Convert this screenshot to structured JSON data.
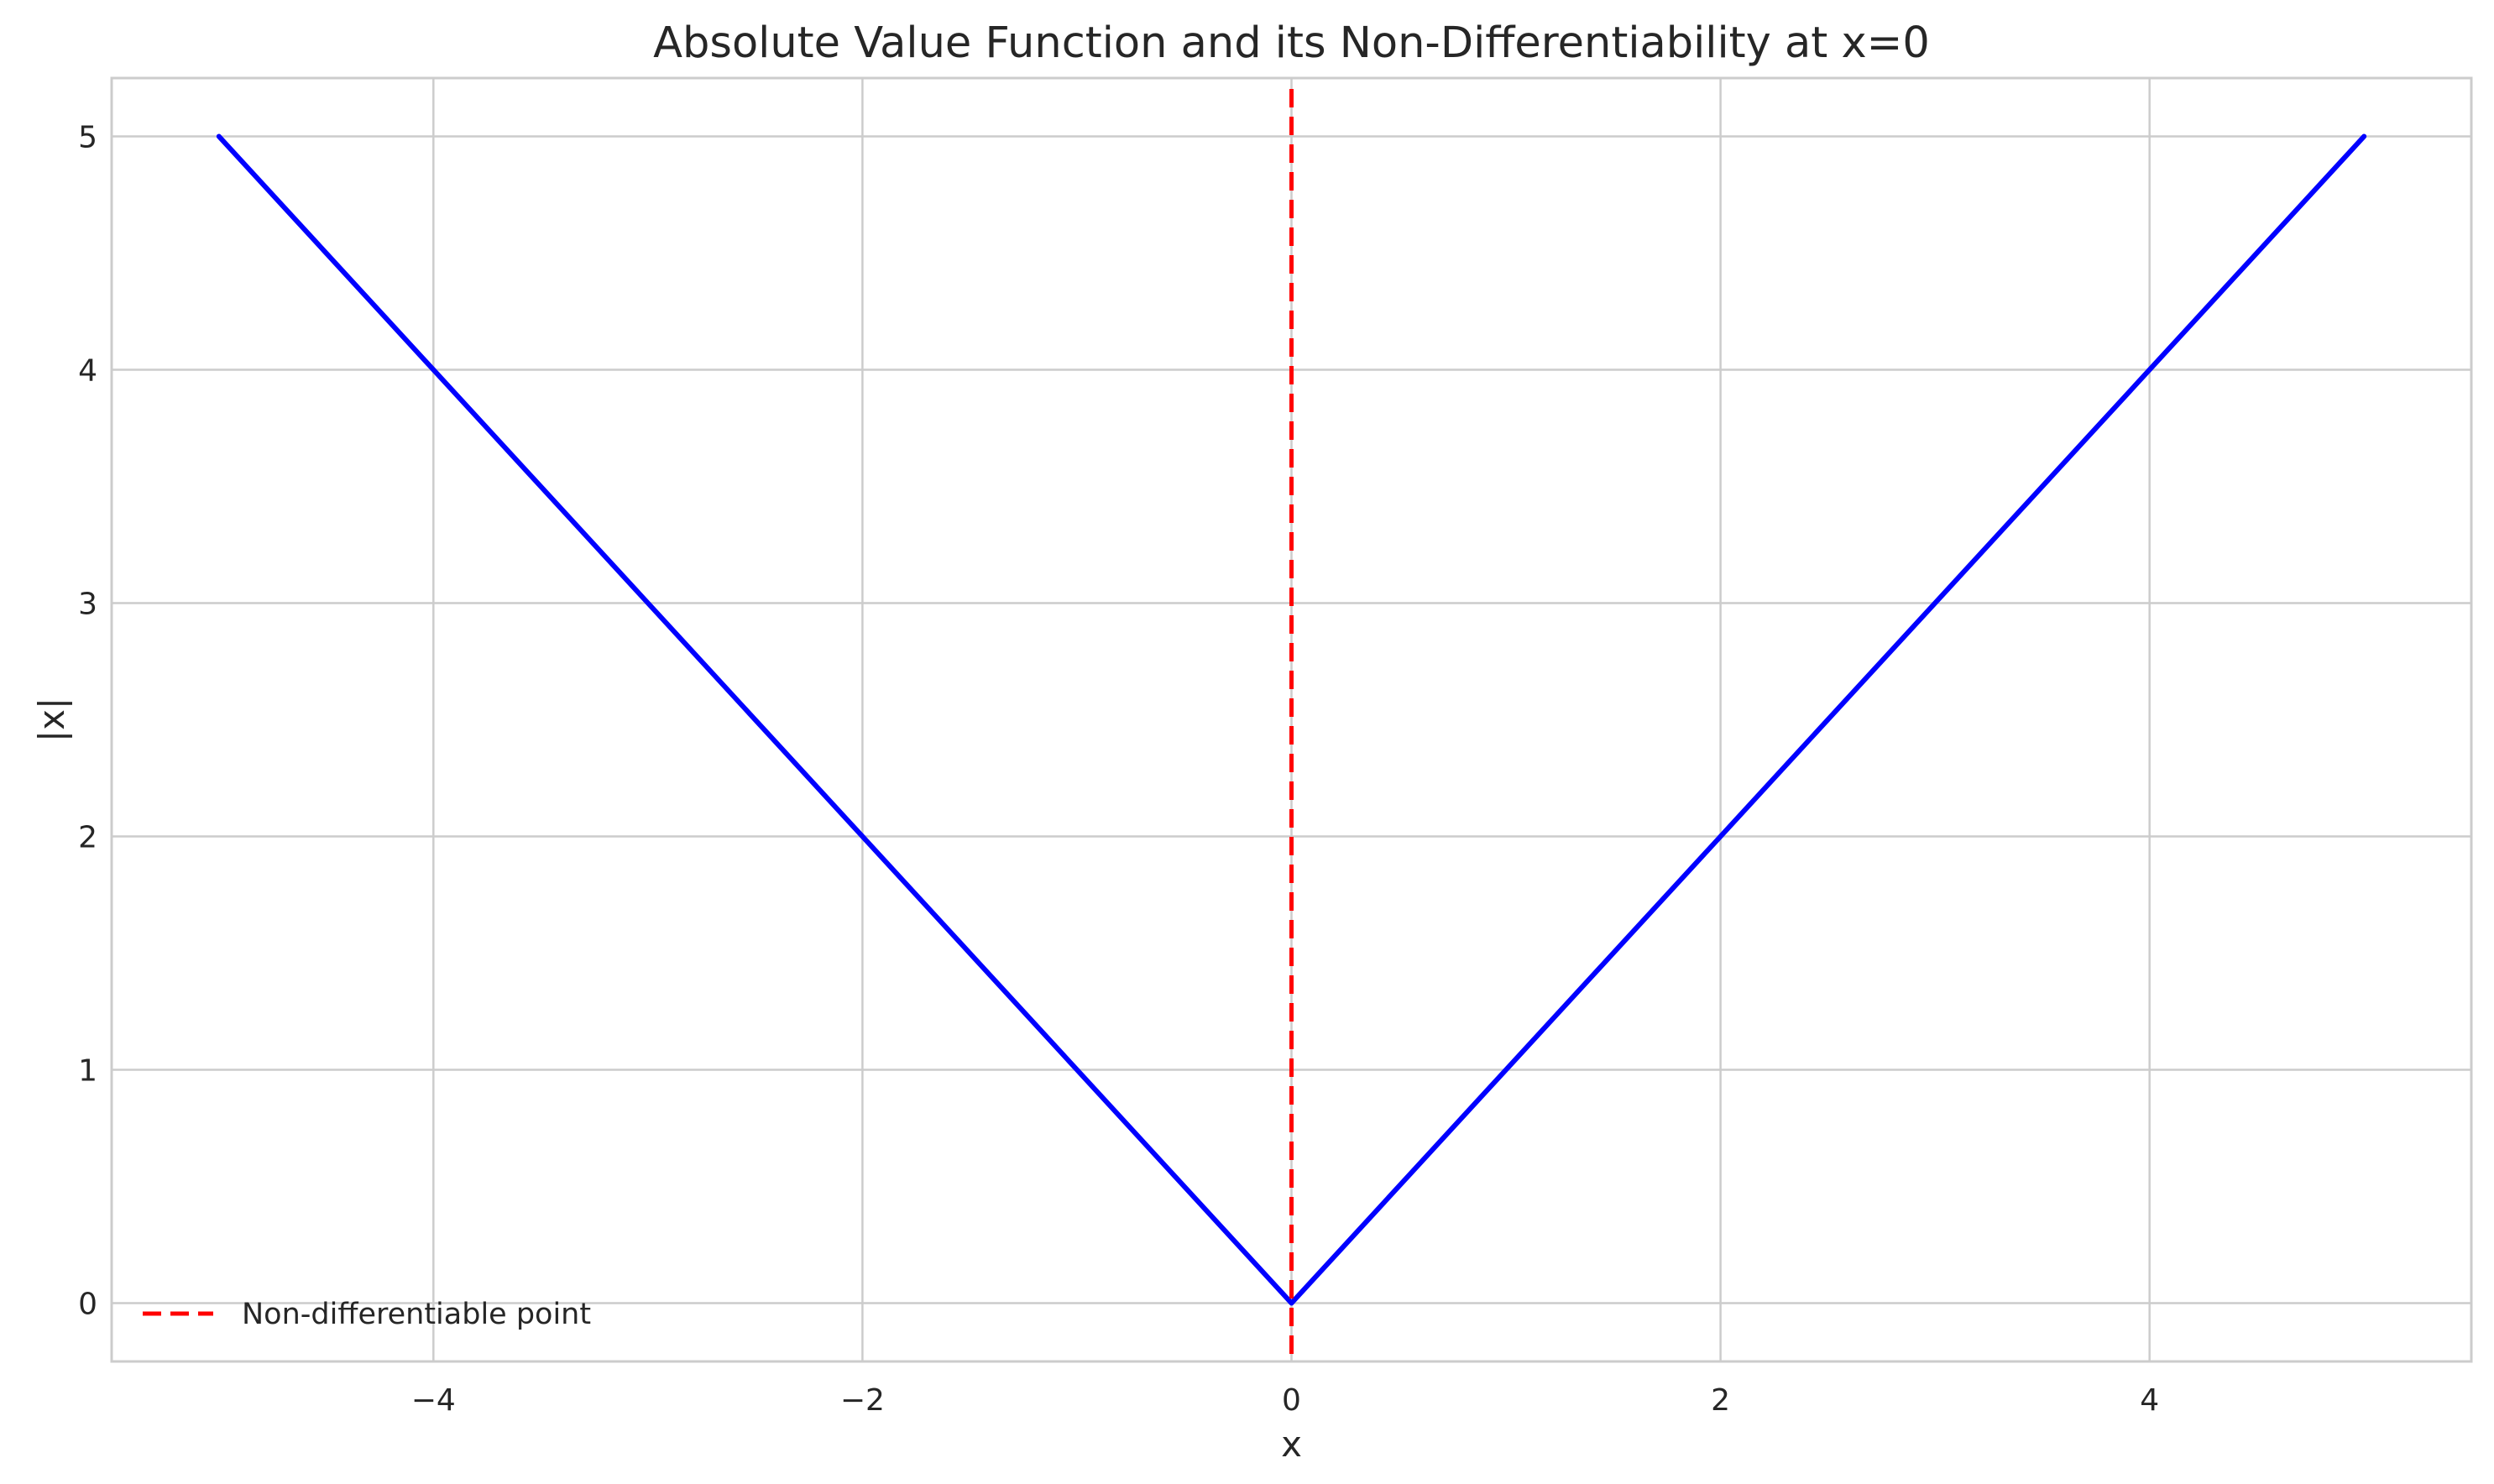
{
  "chart_data": {
    "type": "line",
    "title": "Absolute Value Function and its Non-Differentiability at x=0",
    "xlabel": "x",
    "ylabel": "|x|",
    "xlim": [
      -5.5,
      5.5
    ],
    "ylim": [
      -0.25,
      5.25
    ],
    "xticks": [
      -4,
      -2,
      0,
      2,
      4
    ],
    "xtick_labels": [
      "−4",
      "−2",
      "0",
      "2",
      "4"
    ],
    "yticks": [
      0,
      1,
      2,
      3,
      4,
      5
    ],
    "ytick_labels": [
      "0",
      "1",
      "2",
      "3",
      "4",
      "5"
    ],
    "grid": true,
    "series": [
      {
        "x": [
          -5,
          0,
          5
        ],
        "y": [
          5,
          0,
          5
        ],
        "color": "#0000ff",
        "style": "solid"
      }
    ],
    "vlines": [
      {
        "name": "Non-differentiable point",
        "x": 0,
        "color": "#ff0000",
        "style": "dashed"
      }
    ],
    "legend": {
      "placement": "lower-left",
      "entries": [
        "Non-differentiable point"
      ]
    }
  }
}
